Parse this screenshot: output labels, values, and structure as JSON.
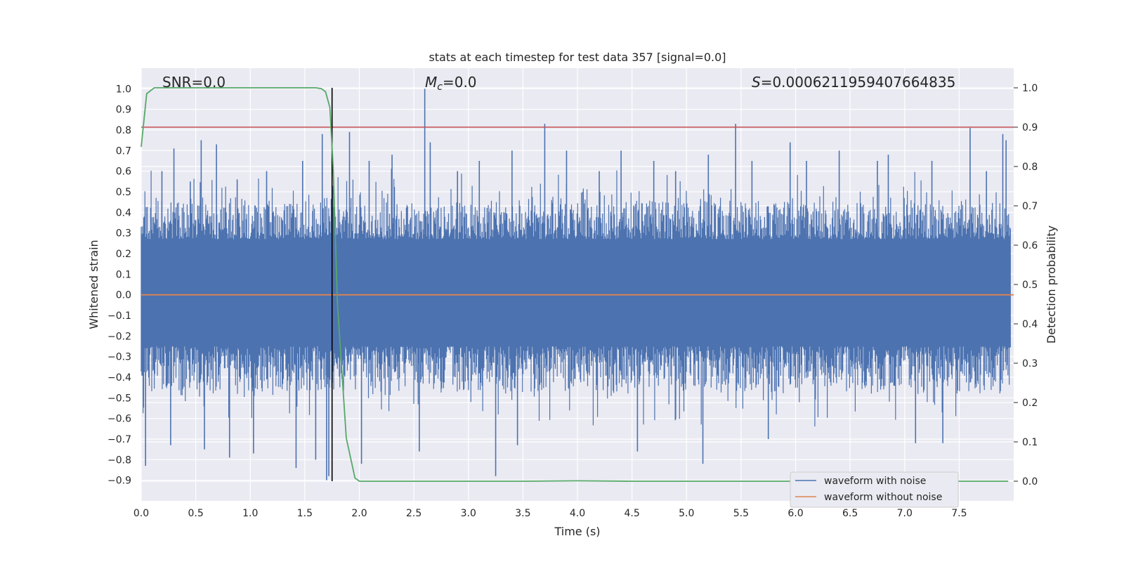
{
  "chart_data": {
    "type": "line",
    "title": "stats at each timestep for test data 357 [signal=0.0]",
    "xlabel": "Time (s)",
    "ylabel": "Whitened strain",
    "ylabel_right": "Detection probability",
    "xlim": [
      0.0,
      8.0
    ],
    "ylim": [
      -1.0,
      1.1
    ],
    "ylim_right": [
      -0.05,
      1.05
    ],
    "xticks": [
      "0.0",
      "0.5",
      "1.0",
      "1.5",
      "2.0",
      "2.5",
      "3.0",
      "3.5",
      "4.0",
      "4.5",
      "5.0",
      "5.5",
      "6.0",
      "6.5",
      "7.0",
      "7.5"
    ],
    "yticks": [
      "1.0",
      "0.9",
      "0.8",
      "0.7",
      "0.6",
      "0.5",
      "0.4",
      "0.3",
      "0.2",
      "0.1",
      "0.0",
      "−0.1",
      "−0.2",
      "−0.3",
      "−0.4",
      "−0.5",
      "−0.6",
      "−0.7",
      "−0.8",
      "−0.9"
    ],
    "yticks_right": [
      "1.0",
      "0.9",
      "0.8",
      "0.7",
      "0.6",
      "0.5",
      "0.4",
      "0.3",
      "0.2",
      "0.1",
      "0.0"
    ],
    "grid": true,
    "annotations": {
      "snr_label": "SNR=0.0",
      "mc_symbol": "M",
      "mc_sub": "c",
      "mc_value": "=0.0",
      "s_symbol": "S",
      "s_value": "=0.000621195940766483​5"
    },
    "threshold_right": 0.9,
    "vertical_marker_x": 1.75,
    "noisy_waveform": {
      "name": "waveform with noise",
      "color": "#4c72b0",
      "core_lo": -0.25,
      "core_hi": 0.27,
      "spike_peaks": [
        {
          "x": 0.04,
          "y": -0.83
        },
        {
          "x": 0.19,
          "y": 0.6
        },
        {
          "x": 0.27,
          "y": -0.73
        },
        {
          "x": 0.3,
          "y": 0.71
        },
        {
          "x": 0.45,
          "y": 0.55
        },
        {
          "x": 0.55,
          "y": 0.75
        },
        {
          "x": 0.58,
          "y": -0.75
        },
        {
          "x": 0.69,
          "y": 0.73
        },
        {
          "x": 0.81,
          "y": -0.79
        },
        {
          "x": 0.88,
          "y": 0.56
        },
        {
          "x": 1.03,
          "y": -0.77
        },
        {
          "x": 1.15,
          "y": 0.6
        },
        {
          "x": 1.42,
          "y": -0.84
        },
        {
          "x": 1.48,
          "y": 0.65
        },
        {
          "x": 1.6,
          "y": -0.8
        },
        {
          "x": 1.66,
          "y": 0.78
        },
        {
          "x": 1.7,
          "y": -0.9
        },
        {
          "x": 1.72,
          "y": -0.88
        },
        {
          "x": 1.91,
          "y": 0.79
        },
        {
          "x": 2.02,
          "y": -0.82
        },
        {
          "x": 2.09,
          "y": 0.65
        },
        {
          "x": 2.3,
          "y": 0.68
        },
        {
          "x": 2.55,
          "y": -0.76
        },
        {
          "x": 2.6,
          "y": 1.0
        },
        {
          "x": 2.65,
          "y": 0.74
        },
        {
          "x": 2.9,
          "y": 0.6
        },
        {
          "x": 3.1,
          "y": 0.65
        },
        {
          "x": 3.25,
          "y": -0.88
        },
        {
          "x": 3.4,
          "y": 0.7
        },
        {
          "x": 3.45,
          "y": -0.73
        },
        {
          "x": 3.7,
          "y": 0.83
        },
        {
          "x": 3.9,
          "y": 0.7
        },
        {
          "x": 4.2,
          "y": 0.6
        },
        {
          "x": 4.4,
          "y": 0.7
        },
        {
          "x": 4.55,
          "y": -0.76
        },
        {
          "x": 4.7,
          "y": 0.65
        },
        {
          "x": 4.9,
          "y": 0.6
        },
        {
          "x": 5.15,
          "y": -0.82
        },
        {
          "x": 5.2,
          "y": 0.68
        },
        {
          "x": 5.45,
          "y": 0.83
        },
        {
          "x": 5.6,
          "y": 0.65
        },
        {
          "x": 5.75,
          "y": -0.7
        },
        {
          "x": 5.95,
          "y": 0.74
        },
        {
          "x": 6.1,
          "y": 0.65
        },
        {
          "x": 6.4,
          "y": 0.7
        },
        {
          "x": 6.75,
          "y": 0.65
        },
        {
          "x": 6.85,
          "y": 0.68
        },
        {
          "x": 7.1,
          "y": -0.72
        },
        {
          "x": 7.25,
          "y": 0.65
        },
        {
          "x": 7.35,
          "y": -0.72
        },
        {
          "x": 7.6,
          "y": 0.81
        },
        {
          "x": 7.75,
          "y": 0.6
        },
        {
          "x": 7.9,
          "y": 0.78
        },
        {
          "x": 7.93,
          "y": 0.75
        }
      ]
    },
    "clean_waveform": {
      "name": "waveform without noise",
      "color": "#dd8452",
      "value": 0.0
    },
    "detection_probability": {
      "name": "detection probability",
      "color": "#55a868",
      "x": [
        0.0,
        0.05,
        0.12,
        0.3,
        0.6,
        1.0,
        1.4,
        1.6,
        1.65,
        1.69,
        1.73,
        1.76,
        1.8,
        1.88,
        1.96,
        2.0,
        2.5,
        3.0,
        3.5,
        4.0,
        4.5,
        5.0,
        5.5,
        6.0,
        6.5,
        7.0,
        7.5,
        7.95
      ],
      "y": [
        0.85,
        0.985,
        1.0,
        1.0,
        1.0,
        1.0,
        1.0,
        1.0,
        0.998,
        0.99,
        0.95,
        0.8,
        0.45,
        0.11,
        0.008,
        0.0,
        0.0,
        0.0,
        0.0,
        0.001,
        0.0,
        0.0,
        0.0,
        0.0,
        0.0,
        0.0,
        0.0,
        0.0
      ]
    },
    "legend": {
      "placement": "lower-right",
      "entries": [
        "waveform with noise",
        "waveform without noise"
      ]
    },
    "colors": {
      "background": "#eaeaf2",
      "grid": "#ffffff",
      "threshold": "#c44e52",
      "marker": "#000000"
    }
  }
}
